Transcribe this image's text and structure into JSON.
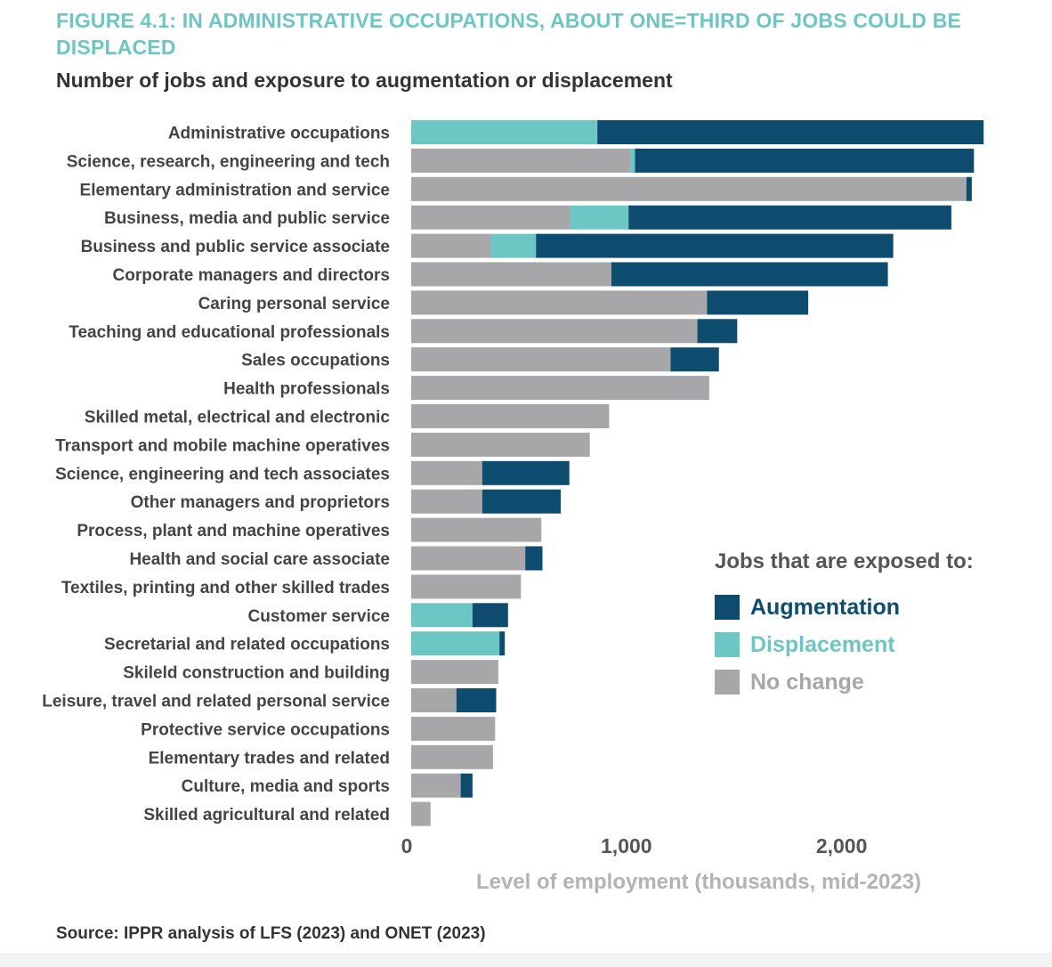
{
  "figure": {
    "title": "FIGURE 4.1: IN ADMINISTRATIVE OCCUPATIONS, ABOUT ONE=THIRD OF JOBS COULD BE DISPLACED",
    "subtitle": "Number of jobs and exposure to augmentation or displacement",
    "source": "Source: IPPR analysis of LFS (2023) and ONET (2023)"
  },
  "colors": {
    "augmentation": "#0d4c6e",
    "displacement": "#6cc7c4",
    "no_change": "#a7a6a8",
    "title": "#6cc7c4",
    "axis_label": "#b3b3b3"
  },
  "legend": {
    "title": "Jobs that are exposed to:",
    "items": [
      {
        "label": "Augmentation",
        "color": "#0d4c6e"
      },
      {
        "label": "Displacement",
        "color": "#6cc7c4"
      },
      {
        "label": "No change",
        "color": "#a7a6a8"
      }
    ]
  },
  "chart_data": {
    "type": "bar",
    "orientation": "horizontal",
    "stacked": true,
    "xlabel": "Level of employment (thousands, mid-2023)",
    "ylabel": "",
    "xlim": [
      0,
      2650
    ],
    "xticks": [
      0,
      1000,
      2000
    ],
    "xtick_labels": [
      "0",
      "1,000",
      "2,000"
    ],
    "grid": false,
    "legend_position": "right",
    "categories": [
      "Administrative occupations",
      "Science, research, engineering and tech",
      "Elementary administration and service",
      "Business, media and public service",
      "Business and public service associate",
      "Corporate managers and directors",
      "Caring personal service",
      "Teaching and educational professionals",
      "Sales occupations",
      "Health professionals",
      "Skilled metal, electrical and electronic",
      "Transport and mobile machine operatives",
      "Science, engineering and tech associates",
      "Other managers and proprietors",
      "Process, plant and machine operatives",
      "Health and social care associate",
      "Textiles, printing and other skilled trades",
      "Customer service",
      "Secretarial and related occupations",
      "Skileld construction and building",
      "Leisure, travel and related personal service",
      "Protective service occupations",
      "Elementary trades and related",
      "Culture, media and sports",
      "Skilled agricultural and related"
    ],
    "series": [
      {
        "name": "No change",
        "color": "#a7a6a8",
        "values": [
          0,
          1020,
          2580,
          740,
          370,
          930,
          1375,
          1330,
          1205,
          1385,
          920,
          830,
          330,
          330,
          605,
          530,
          510,
          0,
          0,
          405,
          210,
          390,
          380,
          230,
          90
        ]
      },
      {
        "name": "Displacement",
        "color": "#6cc7c4",
        "values": [
          865,
          20,
          0,
          270,
          210,
          0,
          0,
          0,
          0,
          0,
          0,
          0,
          0,
          0,
          0,
          0,
          0,
          285,
          410,
          0,
          0,
          0,
          0,
          0,
          0
        ]
      },
      {
        "name": "Augmentation",
        "color": "#0d4c6e",
        "values": [
          1795,
          1575,
          25,
          1500,
          1660,
          1285,
          470,
          185,
          225,
          0,
          0,
          0,
          405,
          365,
          0,
          80,
          0,
          165,
          25,
          0,
          185,
          0,
          0,
          55,
          0
        ]
      }
    ]
  }
}
